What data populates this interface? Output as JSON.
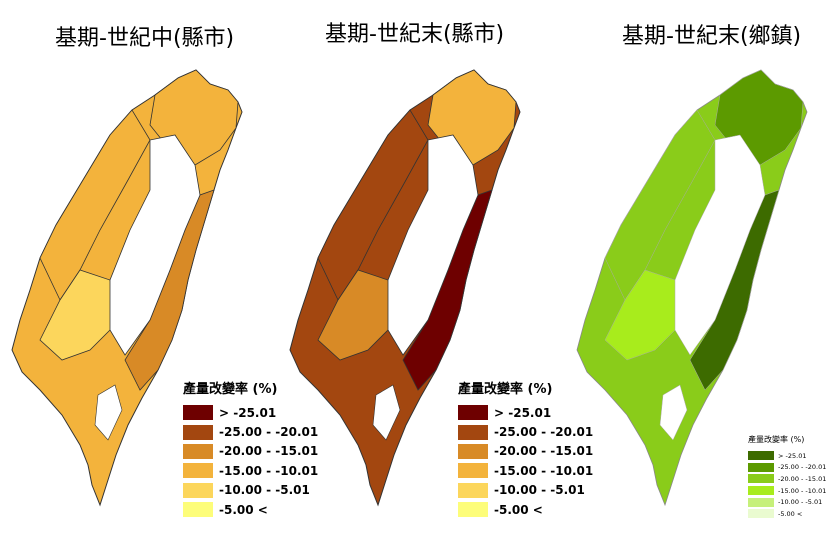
{
  "panels": [
    {
      "title": "基期-世紀中(縣市)",
      "legend_title": "產量改變率 (%)",
      "legend": [
        {
          "label": "> -25.01",
          "color": "#6e0000"
        },
        {
          "label": "-25.00 - -20.01",
          "color": "#a34710"
        },
        {
          "label": "-20.00 - -15.01",
          "color": "#d88a26"
        },
        {
          "label": "-15.00 - -10.01",
          "color": "#f3b33c"
        },
        {
          "label": "-10.00 - -5.01",
          "color": "#fcd65c"
        },
        {
          "label": "-5.00 <",
          "color": "#fdfd7a"
        }
      ],
      "map_colors": [
        "#f3b33c",
        "#fcd65c",
        "#d88a26",
        "#f3b33c"
      ]
    },
    {
      "title": "基期-世紀末(縣市)",
      "legend_title": "產量改變率 (%)",
      "legend": [
        {
          "label": "> -25.01",
          "color": "#6e0000"
        },
        {
          "label": "-25.00 - -20.01",
          "color": "#a34710"
        },
        {
          "label": "-20.00 - -15.01",
          "color": "#d88a26"
        },
        {
          "label": "-15.00 - -10.01",
          "color": "#f3b33c"
        },
        {
          "label": "-10.00 - -5.01",
          "color": "#fcd65c"
        },
        {
          "label": "-5.00 <",
          "color": "#fdfd7a"
        }
      ],
      "map_colors": [
        "#a34710",
        "#d88a26",
        "#6e0000",
        "#f3b33c"
      ]
    },
    {
      "title": "基期-世紀末(鄉鎮)",
      "legend_title": "產量改變率 (%)",
      "legend": [
        {
          "label": "> -25.01",
          "color": "#3d6b00"
        },
        {
          "label": "-25.00 - -20.01",
          "color": "#5c9a00"
        },
        {
          "label": "-20.00 - -15.01",
          "color": "#8acc1a"
        },
        {
          "label": "-15.00 - -10.01",
          "color": "#a8ec1c"
        },
        {
          "label": "-10.00 - -5.01",
          "color": "#c6f07a"
        },
        {
          "label": "-5.00 <",
          "color": "#eafbd0"
        }
      ],
      "map_colors": [
        "#8acc1a",
        "#a8ec1c",
        "#3d6b00",
        "#5c9a00"
      ]
    }
  ]
}
